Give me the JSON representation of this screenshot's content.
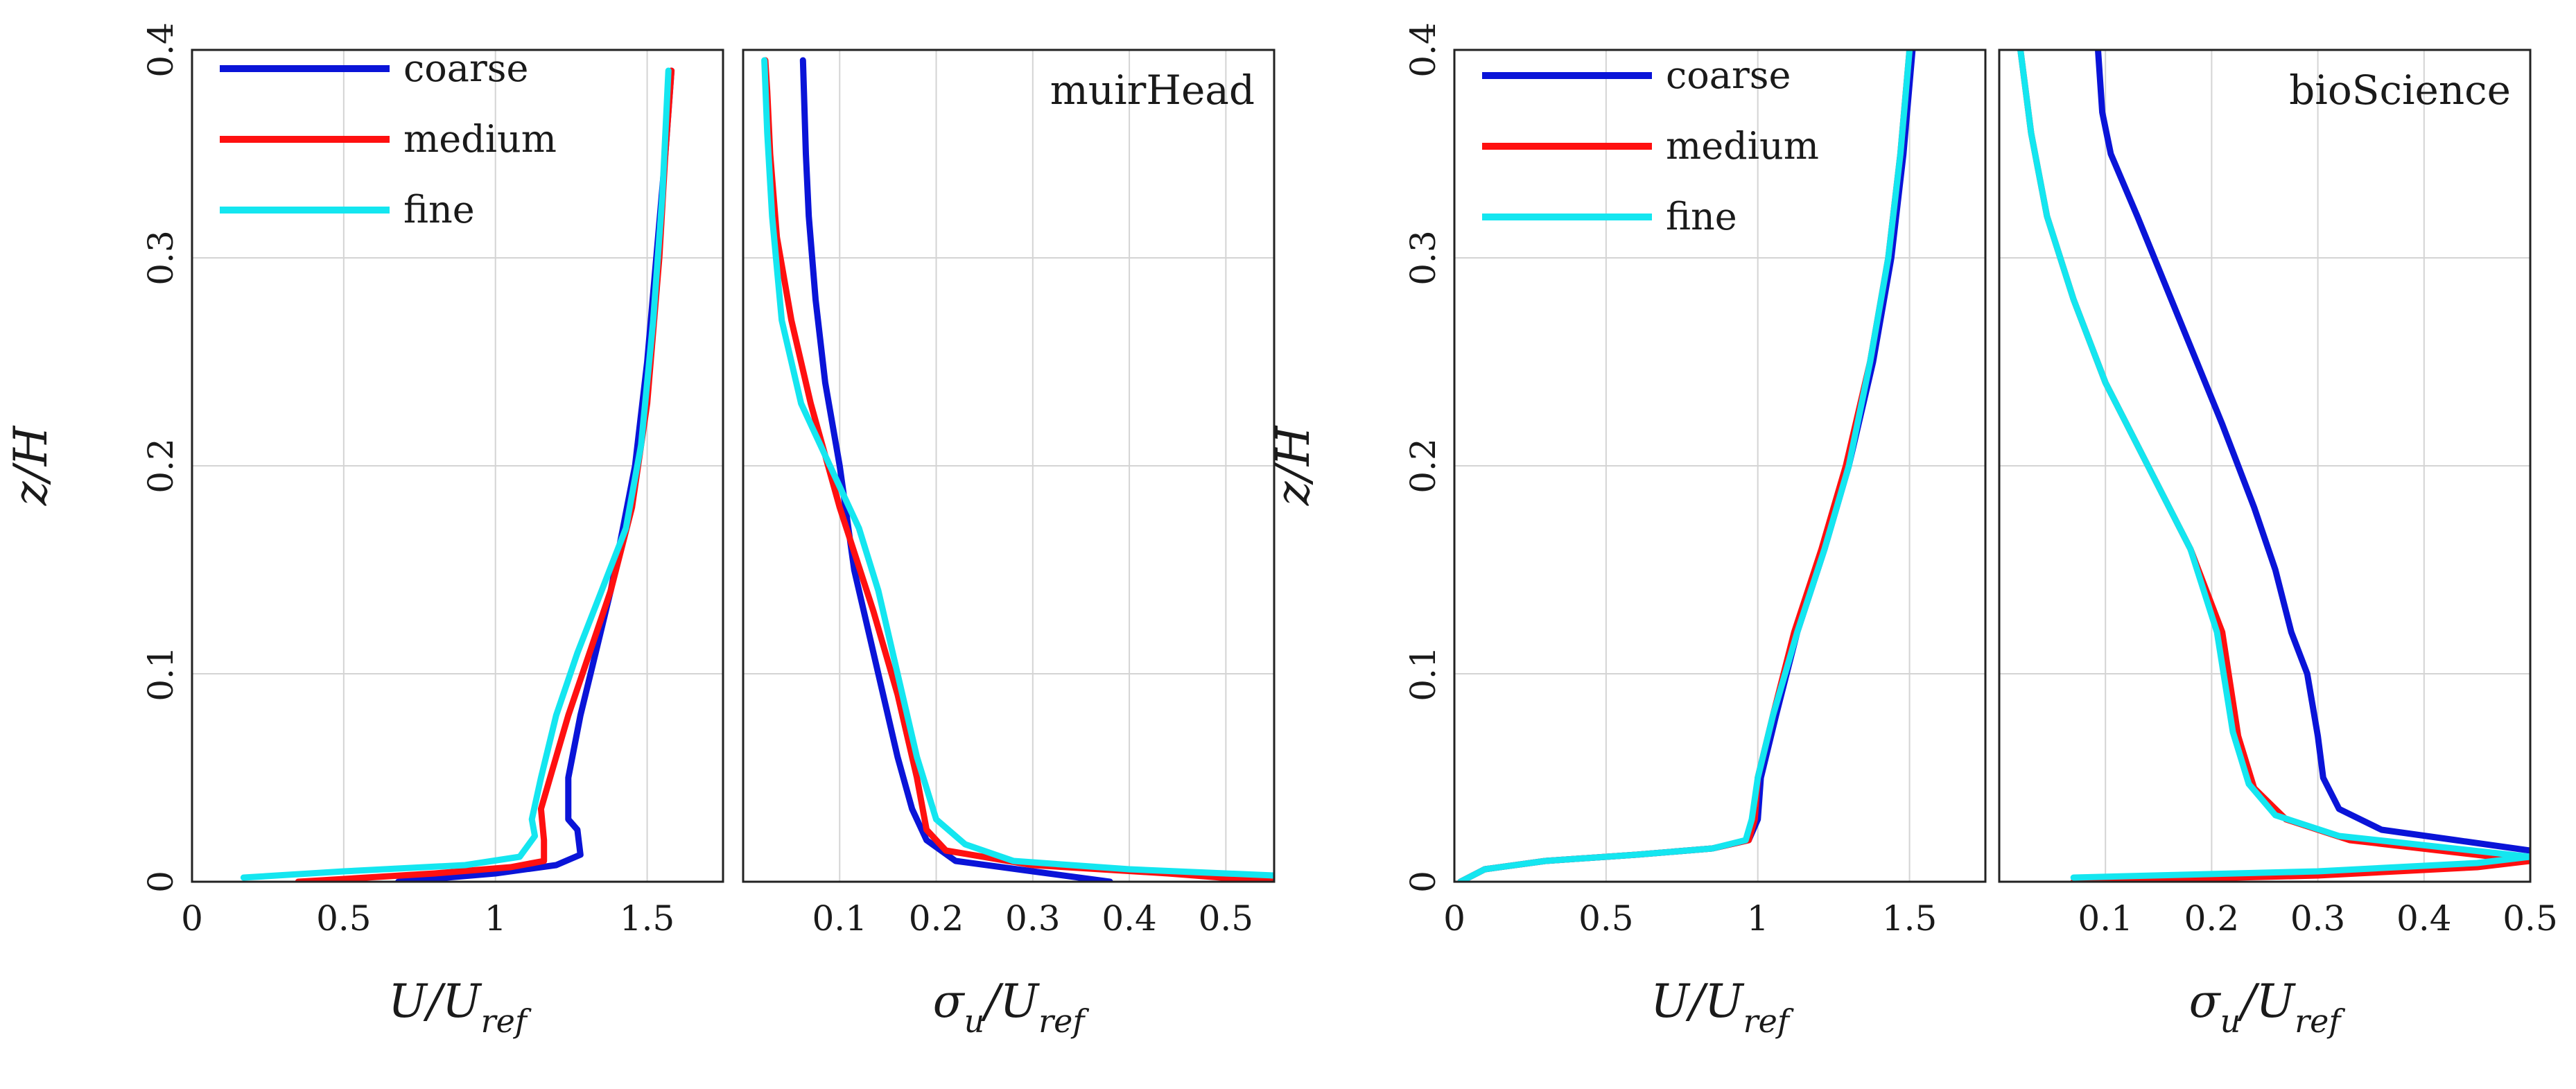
{
  "chart_data": [
    {
      "type": "line",
      "title": "",
      "xlabel": "U/U_ref",
      "xlabel_main": "U/U",
      "xlabel_sub": "ref",
      "ylabel": "z/H",
      "ylabel_main": "z/H",
      "xlim": [
        0,
        1.75
      ],
      "ylim": [
        0,
        0.4
      ],
      "xticks": [
        0,
        0.5,
        1,
        1.5
      ],
      "xtick_labels": [
        "0",
        "0.5",
        "1",
        "1.5"
      ],
      "yticks": [
        0,
        0.1,
        0.2,
        0.3,
        0.4
      ],
      "ytick_labels": [
        "0",
        "0.1",
        "0.2",
        "0.3",
        "0.4"
      ],
      "grid": true,
      "legend": "top-left",
      "series": [
        {
          "name": "coarse",
          "color": "#0a14d8",
          "x": [
            0.68,
            1.0,
            1.2,
            1.28,
            1.27,
            1.24,
            1.24,
            1.28,
            1.33,
            1.38,
            1.42,
            1.46,
            1.5,
            1.53,
            1.56,
            1.58
          ],
          "y": [
            0.0,
            0.004,
            0.008,
            0.013,
            0.025,
            0.03,
            0.05,
            0.08,
            0.11,
            0.14,
            0.17,
            0.2,
            0.25,
            0.3,
            0.35,
            0.39
          ]
        },
        {
          "name": "medium",
          "color": "#ff1010",
          "x": [
            0.35,
            0.8,
            1.05,
            1.16,
            1.16,
            1.15,
            1.18,
            1.24,
            1.31,
            1.38,
            1.45,
            1.5,
            1.54,
            1.56,
            1.58
          ],
          "y": [
            0.0,
            0.004,
            0.007,
            0.01,
            0.02,
            0.035,
            0.05,
            0.08,
            0.11,
            0.14,
            0.18,
            0.23,
            0.3,
            0.35,
            0.39
          ]
        },
        {
          "name": "fine",
          "color": "#14e6f0",
          "x": [
            0.17,
            0.5,
            0.9,
            1.08,
            1.13,
            1.12,
            1.15,
            1.2,
            1.27,
            1.35,
            1.43,
            1.48,
            1.52,
            1.55,
            1.57
          ],
          "y": [
            0.002,
            0.005,
            0.008,
            0.012,
            0.022,
            0.03,
            0.05,
            0.08,
            0.11,
            0.14,
            0.17,
            0.21,
            0.27,
            0.33,
            0.39
          ]
        }
      ]
    },
    {
      "type": "line",
      "title": "muirHead",
      "xlabel": "σu/U_ref",
      "xlabel_main": "σ",
      "xlabel_sub1": "u",
      "xlabel_mid": "/U",
      "xlabel_sub2": "ref",
      "ylabel": "z/H",
      "xlim": [
        0,
        0.55
      ],
      "ylim": [
        0,
        0.4
      ],
      "xticks": [
        0.1,
        0.2,
        0.3,
        0.4,
        0.5
      ],
      "xtick_labels": [
        "0.1",
        "0.2",
        "0.3",
        "0.4",
        "0.5"
      ],
      "yticks": [
        0,
        0.1,
        0.2,
        0.3,
        0.4
      ],
      "grid": true,
      "series": [
        {
          "name": "coarse",
          "color": "#0a14d8",
          "x": [
            0.38,
            0.3,
            0.22,
            0.19,
            0.175,
            0.16,
            0.14,
            0.115,
            0.1,
            0.085,
            0.075,
            0.068,
            0.065,
            0.063,
            0.062
          ],
          "y": [
            0.0,
            0.005,
            0.01,
            0.02,
            0.035,
            0.06,
            0.1,
            0.15,
            0.2,
            0.24,
            0.28,
            0.32,
            0.35,
            0.38,
            0.395
          ]
        },
        {
          "name": "medium",
          "color": "#ff1010",
          "x": [
            0.55,
            0.44,
            0.3,
            0.21,
            0.19,
            0.18,
            0.16,
            0.135,
            0.1,
            0.07,
            0.05,
            0.035,
            0.028,
            0.025,
            0.023
          ],
          "y": [
            0.0,
            0.004,
            0.008,
            0.015,
            0.025,
            0.05,
            0.09,
            0.13,
            0.18,
            0.23,
            0.27,
            0.31,
            0.35,
            0.38,
            0.395
          ]
        },
        {
          "name": "fine",
          "color": "#14e6f0",
          "x": [
            0.55,
            0.4,
            0.28,
            0.23,
            0.2,
            0.18,
            0.16,
            0.14,
            0.12,
            0.09,
            0.06,
            0.04,
            0.03,
            0.025,
            0.022
          ],
          "y": [
            0.003,
            0.006,
            0.01,
            0.018,
            0.03,
            0.06,
            0.1,
            0.14,
            0.17,
            0.2,
            0.23,
            0.27,
            0.32,
            0.36,
            0.395
          ]
        }
      ]
    },
    {
      "type": "line",
      "title": "",
      "xlabel": "U/U_ref",
      "xlabel_main": "U/U",
      "xlabel_sub": "ref",
      "ylabel": "z/H",
      "ylabel_main": "z/H",
      "xlim": [
        0,
        1.75
      ],
      "ylim": [
        0,
        0.4
      ],
      "xticks": [
        0,
        0.5,
        1,
        1.5
      ],
      "xtick_labels": [
        "0",
        "0.5",
        "1",
        "1.5"
      ],
      "yticks": [
        0,
        0.1,
        0.2,
        0.3,
        0.4
      ],
      "ytick_labels": [
        "0",
        "0.1",
        "0.2",
        "0.3",
        "0.4"
      ],
      "grid": true,
      "legend": "top-left",
      "series": [
        {
          "name": "coarse",
          "color": "#0a14d8",
          "x": [
            0.02,
            0.1,
            0.3,
            0.6,
            0.85,
            0.97,
            1.0,
            1.01,
            1.06,
            1.13,
            1.22,
            1.3,
            1.38,
            1.44,
            1.48,
            1.51
          ],
          "y": [
            0.0,
            0.006,
            0.01,
            0.013,
            0.016,
            0.02,
            0.03,
            0.05,
            0.08,
            0.12,
            0.16,
            0.2,
            0.25,
            0.3,
            0.35,
            0.4
          ]
        },
        {
          "name": "medium",
          "color": "#ff1010",
          "x": [
            0.02,
            0.1,
            0.3,
            0.6,
            0.85,
            0.97,
            0.99,
            1.0,
            1.05,
            1.12,
            1.21,
            1.29,
            1.37,
            1.43,
            1.47,
            1.5
          ],
          "y": [
            0.0,
            0.006,
            0.01,
            0.013,
            0.016,
            0.02,
            0.03,
            0.05,
            0.08,
            0.12,
            0.16,
            0.2,
            0.25,
            0.3,
            0.35,
            0.4
          ]
        },
        {
          "name": "fine",
          "color": "#14e6f0",
          "x": [
            0.02,
            0.1,
            0.3,
            0.6,
            0.85,
            0.96,
            0.98,
            1.0,
            1.05,
            1.13,
            1.22,
            1.3,
            1.37,
            1.43,
            1.47,
            1.5
          ],
          "y": [
            0.0,
            0.006,
            0.01,
            0.013,
            0.016,
            0.02,
            0.03,
            0.05,
            0.08,
            0.12,
            0.16,
            0.2,
            0.25,
            0.3,
            0.35,
            0.4
          ]
        }
      ]
    },
    {
      "type": "line",
      "title": "bioScience",
      "xlabel": "σu/U_ref",
      "xlabel_main": "σ",
      "xlabel_sub1": "u",
      "xlabel_mid": "/U",
      "xlabel_sub2": "ref",
      "ylabel": "z/H",
      "xlim": [
        0,
        0.5
      ],
      "ylim": [
        0,
        0.4
      ],
      "xticks": [
        0.1,
        0.2,
        0.3,
        0.4,
        0.5
      ],
      "xtick_labels": [
        "0.1",
        "0.2",
        "0.3",
        "0.4",
        "0.5"
      ],
      "yticks": [
        0,
        0.1,
        0.2,
        0.3,
        0.4
      ],
      "grid": true,
      "series": [
        {
          "name": "coarse",
          "color": "#0a14d8",
          "x": [
            0.5,
            0.43,
            0.36,
            0.32,
            0.305,
            0.3,
            0.29,
            0.275,
            0.26,
            0.24,
            0.21,
            0.17,
            0.13,
            0.105,
            0.097,
            0.093
          ],
          "y": [
            0.015,
            0.02,
            0.025,
            0.035,
            0.05,
            0.07,
            0.1,
            0.12,
            0.15,
            0.18,
            0.22,
            0.27,
            0.32,
            0.35,
            0.37,
            0.4
          ]
        },
        {
          "name": "medium",
          "color": "#ff1010",
          "x": [
            0.07,
            0.3,
            0.45,
            0.5,
            0.33,
            0.27,
            0.24,
            0.225,
            0.21,
            0.18,
            0.14,
            0.1,
            0.07,
            0.045,
            0.03,
            0.02
          ],
          "y": [
            0.0,
            0.003,
            0.007,
            0.01,
            0.02,
            0.03,
            0.045,
            0.07,
            0.12,
            0.16,
            0.2,
            0.24,
            0.28,
            0.32,
            0.36,
            0.4
          ]
        },
        {
          "name": "fine",
          "color": "#14e6f0",
          "x": [
            0.07,
            0.3,
            0.45,
            0.5,
            0.32,
            0.26,
            0.235,
            0.22,
            0.205,
            0.18,
            0.14,
            0.1,
            0.07,
            0.045,
            0.03,
            0.02
          ],
          "y": [
            0.002,
            0.005,
            0.009,
            0.012,
            0.022,
            0.032,
            0.047,
            0.072,
            0.12,
            0.16,
            0.2,
            0.24,
            0.28,
            0.32,
            0.36,
            0.4
          ]
        }
      ]
    }
  ]
}
